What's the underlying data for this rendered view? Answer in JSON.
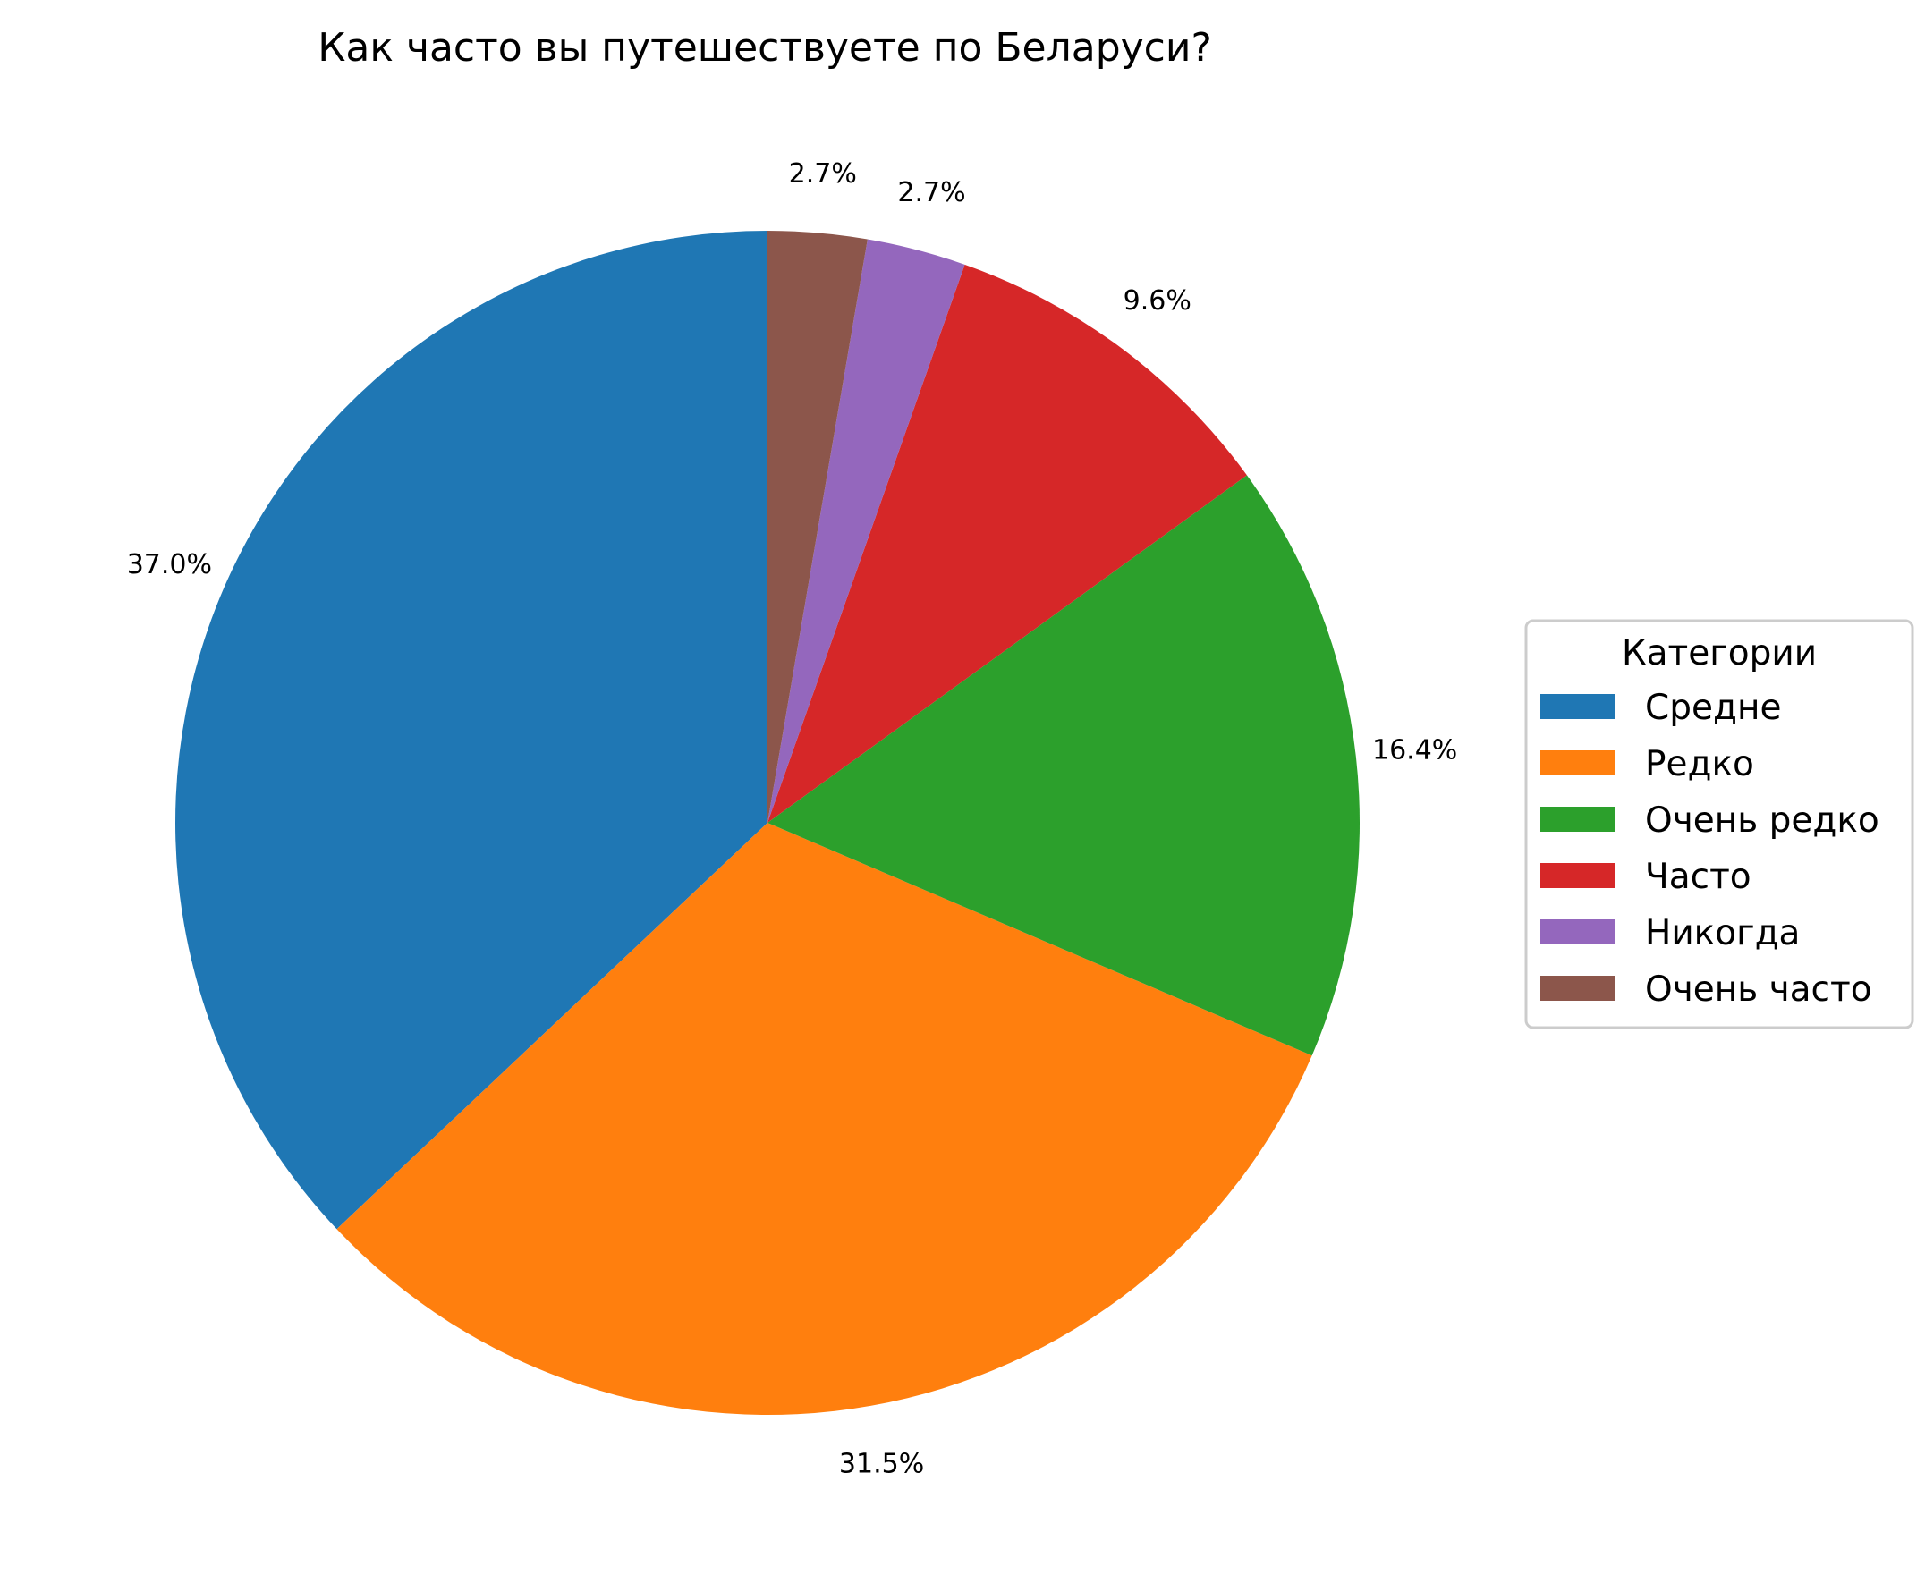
{
  "chart_data": {
    "type": "pie",
    "title": "Как часто вы путешествуете по Беларуси?",
    "start_angle_deg": 90,
    "direction": "counterclockwise",
    "slices": [
      {
        "label": "Средне",
        "value": 37.0,
        "pct_label": "37.0%",
        "color": "#1f77b4"
      },
      {
        "label": "Редко",
        "value": 31.5,
        "pct_label": "31.5%",
        "color": "#ff7f0e"
      },
      {
        "label": "Очень редко",
        "value": 16.4,
        "pct_label": "16.4%",
        "color": "#2ca02c"
      },
      {
        "label": "Часто",
        "value": 9.6,
        "pct_label": "9.6%",
        "color": "#d62728"
      },
      {
        "label": "Никогда",
        "value": 2.7,
        "pct_label": "2.7%",
        "color": "#9467bd"
      },
      {
        "label": "Очень часто",
        "value": 2.7,
        "pct_label": "2.7%",
        "color": "#8c564b"
      }
    ],
    "legend": {
      "title": "Категории",
      "placement": "center-right"
    }
  }
}
